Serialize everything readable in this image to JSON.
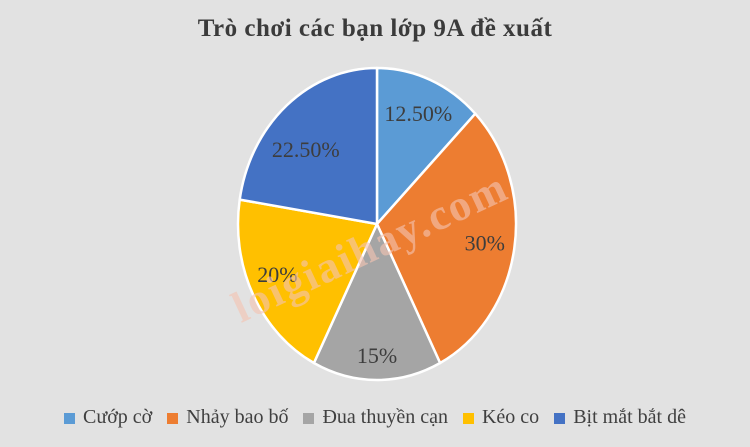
{
  "page": {
    "background_color": "#e2e2e2"
  },
  "chart_data": {
    "type": "pie",
    "title": "Trò chơi các bạn lớp 9A đề xuất",
    "categories": [
      "Cướp cờ",
      "Nhảy bao bố",
      "Đua thuyền cạn",
      "Kéo co",
      "Bịt mắt bắt dê"
    ],
    "values": [
      12.5,
      30,
      15,
      20,
      22.5
    ],
    "data_labels": [
      "12.50%",
      "30%",
      "15%",
      "20%",
      "22.50%"
    ],
    "colors": [
      "#5b9bd5",
      "#ed7d31",
      "#a5a5a5",
      "#ffc000",
      "#4472c4"
    ],
    "start_angle_deg": 0,
    "direction": "clockwise",
    "legend_position": "bottom",
    "slice_border_color": "#ffffff"
  },
  "watermark": {
    "text": "loigiaihay.com",
    "color": "#f4c4b2"
  }
}
